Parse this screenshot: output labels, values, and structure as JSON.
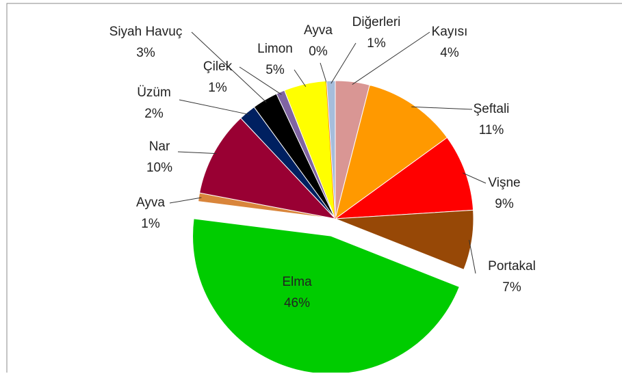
{
  "chart_data": {
    "type": "pie",
    "categories": [
      "Kayısı",
      "Şeftali",
      "Vişne",
      "Portakal",
      "Elma",
      "Ayva",
      "Nar",
      "Üzüm",
      "Siyah Havuç",
      "Çilek",
      "Limon",
      "Ayva",
      "Diğerleri"
    ],
    "values": [
      4,
      11,
      9,
      7,
      46,
      1,
      10,
      2,
      3,
      1,
      5,
      0,
      1
    ],
    "value_labels": [
      "4%",
      "11%",
      "9%",
      "7%",
      "46%",
      "1%",
      "10%",
      "2%",
      "3%",
      "1%",
      "5%",
      "0%",
      "1%"
    ],
    "colors": [
      "#d99694",
      "#ff9900",
      "#ff0000",
      "#974806",
      "#00cc00",
      "#d9853b",
      "#990033",
      "#002060",
      "#000000",
      "#8064a2",
      "#ffff00",
      "#ff3300",
      "#a6bddb"
    ],
    "exploded": [
      4
    ]
  }
}
